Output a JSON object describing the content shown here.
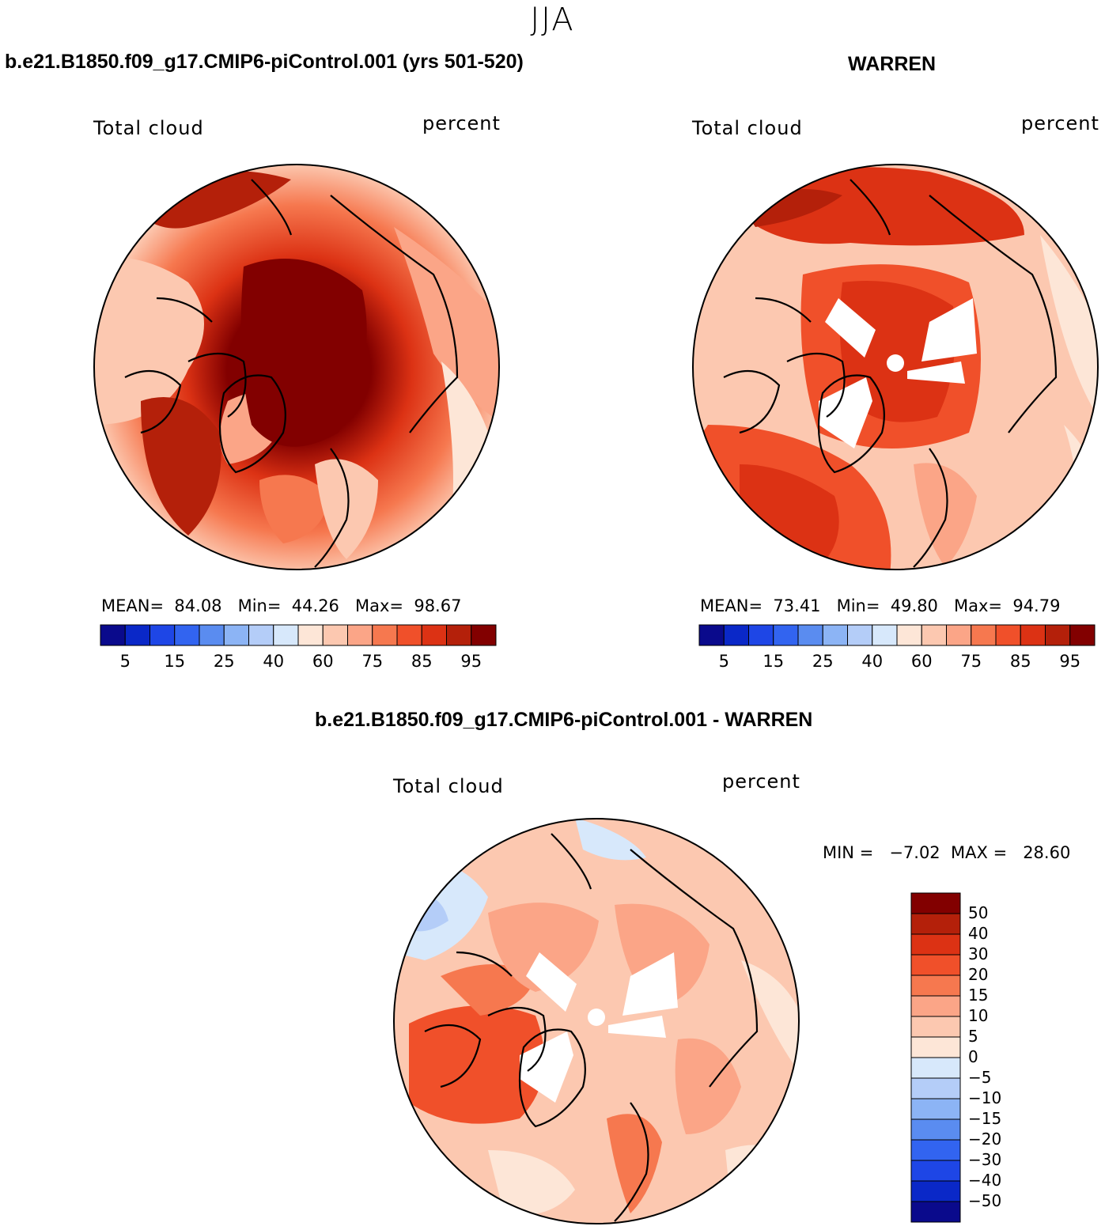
{
  "season": "JJA",
  "panels": {
    "case1": {
      "title": "b.e21.B1850.f09_g17.CMIP6-piControl.001 (yrs 501-520)",
      "variable": "Total cloud",
      "units": "percent",
      "stats": {
        "mean_label": "MEAN=",
        "mean": "84.08",
        "min_label": "Min=",
        "min": "44.26",
        "max_label": "Max=",
        "max": "98.67"
      }
    },
    "case2": {
      "title": "WARREN",
      "variable": "Total cloud",
      "units": "percent",
      "stats": {
        "mean_label": "MEAN=",
        "mean": "73.41",
        "min_label": "Min=",
        "min": "49.80",
        "max_label": "Max=",
        "max": "94.79"
      }
    },
    "diff": {
      "title": "b.e21.B1850.f09_g17.CMIP6-piControl.001 - WARREN",
      "variable": "Total cloud",
      "units": "percent",
      "minmax": "MIN =   −7.02  MAX =   28.60"
    }
  },
  "colorbar_abs": {
    "colors": [
      "#0a0a8c",
      "#0a28c8",
      "#1e46e6",
      "#3264f0",
      "#5a8cf0",
      "#8cb4f5",
      "#b4cdf8",
      "#d7e8fb",
      "#fde6d7",
      "#fcc8b0",
      "#fba587",
      "#f6784f",
      "#f0502a",
      "#dc3214",
      "#b4200a",
      "#820000"
    ],
    "tick_labels": [
      "5",
      "15",
      "25",
      "40",
      "60",
      "75",
      "85",
      "95"
    ]
  },
  "colorbar_diff": {
    "colors": [
      "#820000",
      "#b4200a",
      "#dc3214",
      "#f0502a",
      "#f6784f",
      "#fba587",
      "#fcc8b0",
      "#fde6d7",
      "#d7e8fb",
      "#b4cdf8",
      "#8cb4f5",
      "#5a8cf0",
      "#3264f0",
      "#1e46e6",
      "#0a28c8",
      "#0a0a8c"
    ],
    "tick_labels": [
      "50",
      "40",
      "30",
      "20",
      "15",
      "10",
      "5",
      "0",
      "−5",
      "−10",
      "−15",
      "−20",
      "−30",
      "−40",
      "−50"
    ]
  }
}
